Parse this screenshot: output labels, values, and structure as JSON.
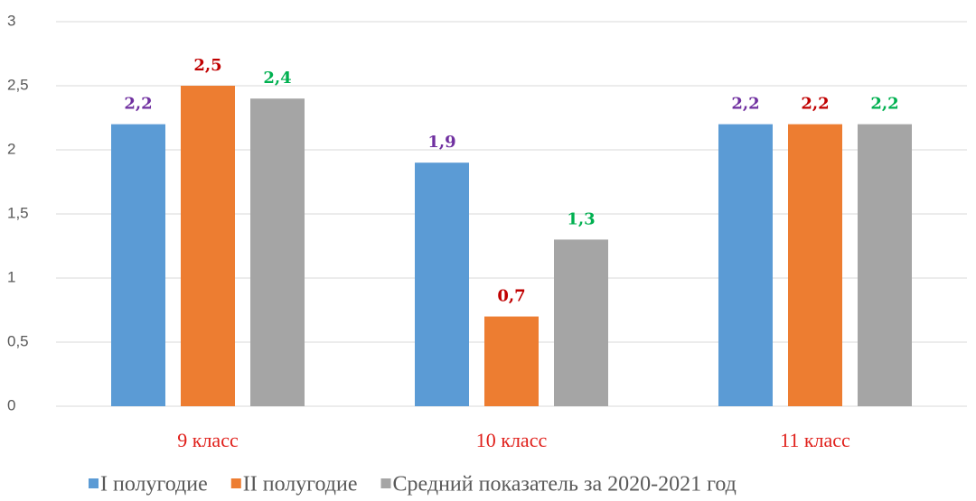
{
  "chart_data": {
    "type": "bar",
    "categories": [
      "9 класс",
      "10 класс",
      "11 класс"
    ],
    "series": [
      {
        "name": "I полугодие",
        "color": "#5b9bd5",
        "label_color": "#7030a0",
        "values": [
          2.2,
          1.9,
          2.2
        ],
        "value_labels": [
          "2,2",
          "1,9",
          "2,2"
        ]
      },
      {
        "name": "II полугодие",
        "color": "#ed7d31",
        "label_color": "#c00000",
        "values": [
          2.5,
          0.7,
          2.2
        ],
        "value_labels": [
          "2,5",
          "0,7",
          "2,2"
        ]
      },
      {
        "name": "Средний показатель за 2020-2021 год",
        "color": "#a5a5a5",
        "label_color": "#00b050",
        "values": [
          2.4,
          1.3,
          2.2
        ],
        "value_labels": [
          "2,4",
          "1,3",
          "2,2"
        ]
      }
    ],
    "ylim": [
      0,
      3
    ],
    "yticks": [
      0,
      {
        "value": 0.5,
        "label": "0,5"
      },
      1,
      {
        "value": 1.5,
        "label": "1,5"
      },
      2,
      {
        "value": 2.5,
        "label": "2,5"
      },
      3
    ],
    "grid": true,
    "legend": "bottom"
  }
}
